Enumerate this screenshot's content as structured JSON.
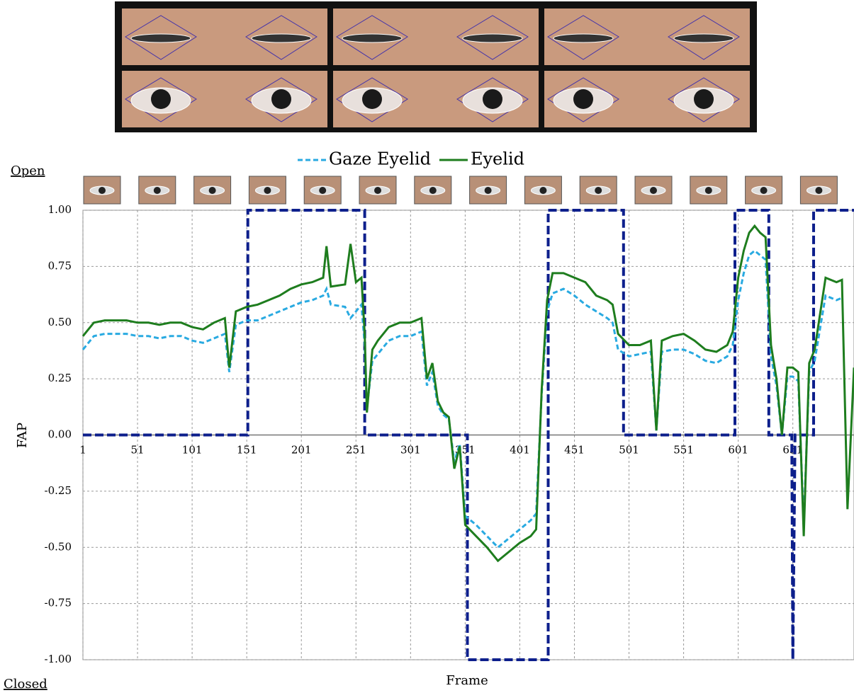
{
  "chart_data": {
    "type": "line",
    "legend_labels": {
      "top": "Open",
      "bottom": "Closed"
    },
    "xlabel": "Frame",
    "ylabel": "FAP",
    "xlim": [
      1,
      707
    ],
    "ylim": [
      -1,
      1
    ],
    "xticks": [
      1,
      51,
      101,
      151,
      201,
      251,
      301,
      351,
      401,
      451,
      501,
      551,
      601,
      651
    ],
    "yticks": [
      {
        "value": 1,
        "label": "1.00"
      },
      {
        "value": 0.75,
        "label": "0.75"
      },
      {
        "value": 0.5,
        "label": "0.50"
      },
      {
        "value": 0.25,
        "label": "0.25"
      },
      {
        "value": 0,
        "label": "0.00"
      },
      {
        "value": -0.25,
        "label": "-0.25"
      },
      {
        "value": -0.5,
        "label": "-0.50"
      },
      {
        "value": -0.75,
        "label": "-0.75"
      },
      {
        "value": -1,
        "label": "-1.00"
      }
    ],
    "grid": true,
    "x": [
      1,
      11,
      21,
      31,
      41,
      51,
      61,
      71,
      81,
      91,
      101,
      111,
      121,
      131,
      135,
      141,
      151,
      161,
      171,
      181,
      191,
      201,
      211,
      221,
      224,
      228,
      241,
      246,
      251,
      256,
      259,
      261,
      266,
      271,
      281,
      291,
      301,
      311,
      316,
      321,
      326,
      331,
      336,
      341,
      346,
      351,
      361,
      371,
      381,
      391,
      401,
      411,
      416,
      421,
      426,
      431,
      441,
      451,
      461,
      471,
      481,
      486,
      491,
      501,
      511,
      521,
      526,
      531,
      541,
      551,
      561,
      571,
      581,
      591,
      596,
      601,
      606,
      611,
      616,
      621,
      626,
      631,
      636,
      641,
      646,
      651,
      656,
      661,
      666,
      671,
      681,
      691,
      696,
      701,
      707
    ],
    "series": [
      {
        "name": "Gaze Eyelid",
        "color": "#29aae1",
        "dash": true,
        "values": [
          0.38,
          0.44,
          0.45,
          0.45,
          0.45,
          0.44,
          0.44,
          0.43,
          0.44,
          0.44,
          0.42,
          0.41,
          0.43,
          0.45,
          0.28,
          0.49,
          0.51,
          0.51,
          0.53,
          0.55,
          0.57,
          0.59,
          0.6,
          0.62,
          0.65,
          0.58,
          0.57,
          0.52,
          0.55,
          0.58,
          0.4,
          0.12,
          0.33,
          0.36,
          0.42,
          0.44,
          0.44,
          0.46,
          0.22,
          0.28,
          0.13,
          0.09,
          0.07,
          -0.12,
          -0.04,
          -0.36,
          -0.4,
          -0.45,
          -0.5,
          -0.46,
          -0.42,
          -0.38,
          -0.35,
          0.18,
          0.55,
          0.63,
          0.65,
          0.62,
          0.58,
          0.55,
          0.52,
          0.5,
          0.38,
          0.35,
          0.36,
          0.37,
          0.02,
          0.37,
          0.38,
          0.38,
          0.36,
          0.33,
          0.32,
          0.35,
          0.4,
          0.6,
          0.72,
          0.8,
          0.82,
          0.8,
          0.78,
          0.35,
          0.22,
          0,
          0.26,
          0.26,
          0.24,
          -0.4,
          0.28,
          0.33,
          0.62,
          0.6,
          0.61,
          null,
          null
        ]
      },
      {
        "name": "Eyelid",
        "color": "#1e7d1e",
        "dash": false,
        "values": [
          0.44,
          0.5,
          0.51,
          0.51,
          0.51,
          0.5,
          0.5,
          0.49,
          0.5,
          0.5,
          0.48,
          0.47,
          0.5,
          0.52,
          0.3,
          0.55,
          0.57,
          0.58,
          0.6,
          0.62,
          0.65,
          0.67,
          0.68,
          0.7,
          0.84,
          0.66,
          0.67,
          0.85,
          0.68,
          0.7,
          0.45,
          0.1,
          0.38,
          0.42,
          0.48,
          0.5,
          0.5,
          0.52,
          0.25,
          0.32,
          0.15,
          0.1,
          0.08,
          -0.15,
          -0.05,
          -0.4,
          -0.45,
          -0.5,
          -0.56,
          -0.52,
          -0.48,
          -0.45,
          -0.42,
          0.2,
          0.6,
          0.72,
          0.72,
          0.7,
          0.68,
          0.62,
          0.6,
          0.58,
          0.45,
          0.4,
          0.4,
          0.42,
          0.02,
          0.42,
          0.44,
          0.45,
          0.42,
          0.38,
          0.37,
          0.4,
          0.46,
          0.7,
          0.82,
          0.9,
          0.93,
          0.9,
          0.88,
          0.4,
          0.25,
          0,
          0.3,
          0.3,
          0.28,
          -0.45,
          0.32,
          0.38,
          0.7,
          0.68,
          0.69,
          -0.33,
          0.3
        ]
      }
    ],
    "state": {
      "color": "#0d1f8c",
      "x": [
        1,
        152,
        152,
        259,
        259,
        353,
        353,
        427,
        427,
        496,
        496,
        598,
        598,
        629,
        629,
        650,
        651,
        653,
        670,
        670,
        707
      ],
      "values": [
        0,
        0,
        1,
        1,
        0,
        0,
        -1,
        -1,
        1,
        1,
        0,
        0,
        1,
        1,
        0,
        0,
        -1,
        0,
        0,
        1,
        1
      ]
    }
  }
}
